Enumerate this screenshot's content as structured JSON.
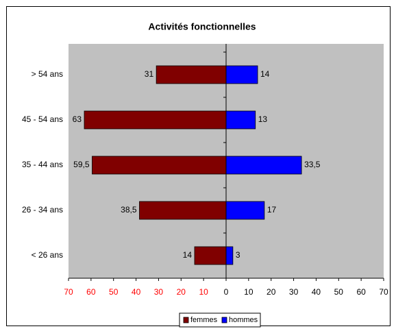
{
  "chart_data": {
    "type": "butterfly-bar",
    "title": "Activités fonctionnelles",
    "categories": [
      "> 54 ans",
      "45 - 54 ans",
      "35 - 44 ans",
      "26 - 34 ans",
      "< 26 ans"
    ],
    "series": [
      {
        "name": "femmes",
        "color": "#800000",
        "values": [
          -31,
          -63,
          -59.5,
          -38.5,
          -14
        ],
        "value_labels": [
          "31",
          "63",
          "59,5",
          "38,5",
          "14"
        ]
      },
      {
        "name": "hommes",
        "color": "#0000ff",
        "values": [
          14,
          13,
          33.5,
          17,
          3
        ],
        "value_labels": [
          "14",
          "13",
          "33,5",
          "17",
          "3"
        ]
      }
    ],
    "xlim": [
      -70,
      70
    ],
    "xticks": [
      {
        "value": -70,
        "label": "70"
      },
      {
        "value": -60,
        "label": "60"
      },
      {
        "value": -50,
        "label": "50"
      },
      {
        "value": -40,
        "label": "40"
      },
      {
        "value": -30,
        "label": "30"
      },
      {
        "value": -20,
        "label": "20"
      },
      {
        "value": -10,
        "label": "10"
      },
      0,
      10,
      20,
      30,
      40,
      50,
      60,
      70
    ],
    "negative_tick_color": "#ff0000",
    "plot_background": "#c0c0c0",
    "grid": false,
    "legend": "bottom"
  }
}
